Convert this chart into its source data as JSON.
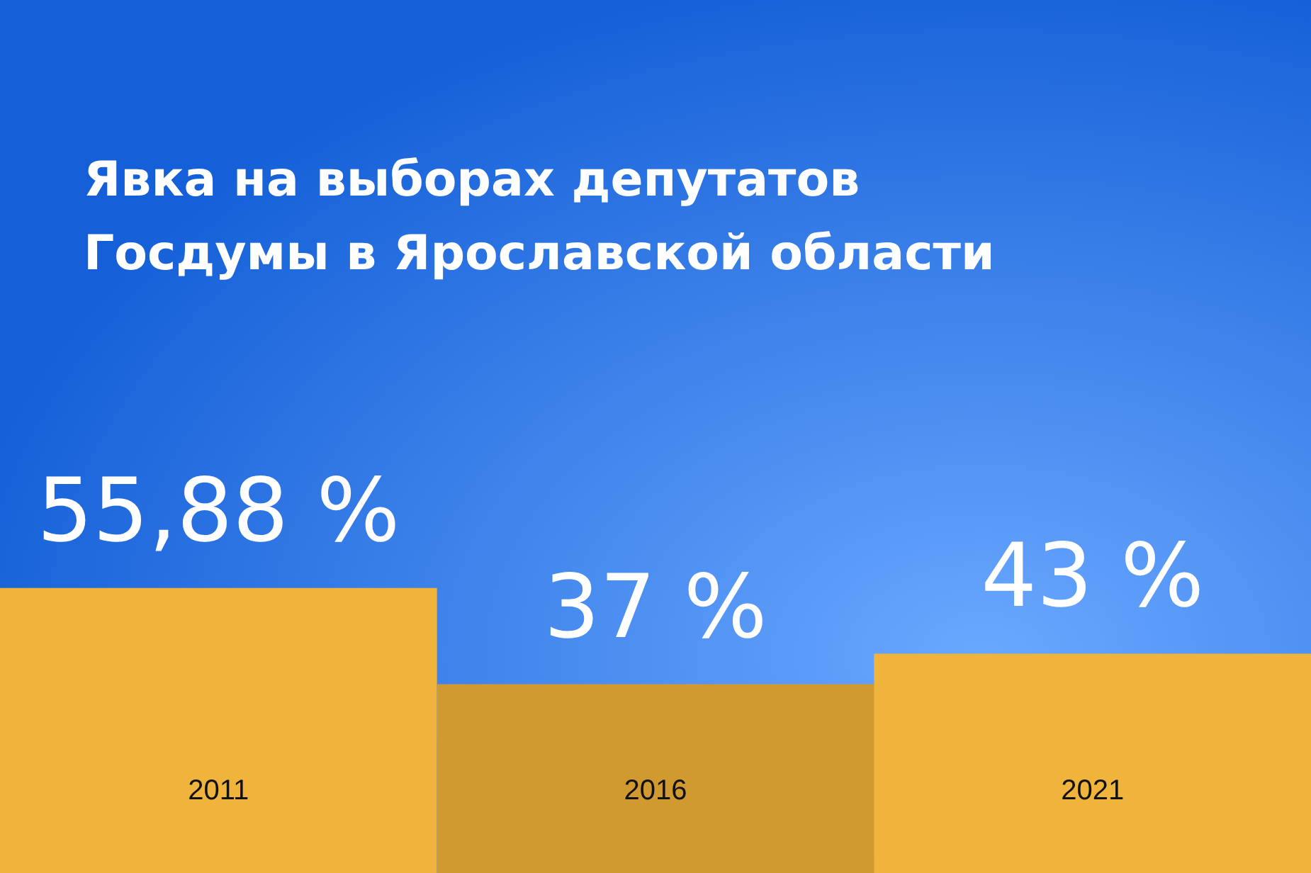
{
  "chart_data": {
    "type": "bar",
    "title": "Явка на выборах депутатов\nГосдумы в Ярославской области",
    "categories": [
      "2011",
      "2016",
      "2021"
    ],
    "values": [
      55.88,
      37,
      43
    ],
    "value_labels": [
      "55,88 %",
      "37 %",
      "43 %"
    ],
    "colors": [
      "#f0b43c",
      "#d09a30",
      "#f0b43c"
    ],
    "grid": false
  }
}
